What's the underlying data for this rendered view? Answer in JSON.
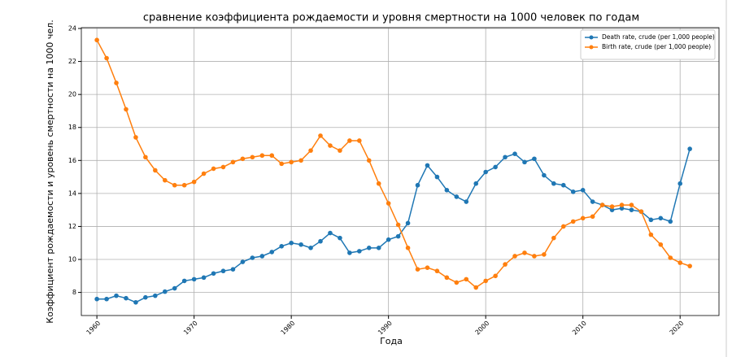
{
  "chart_data": {
    "type": "line",
    "title": "сравнение коэффициента рождаемости и уровня смертности на 1000 человек по годам",
    "xlabel": "Года",
    "ylabel": "Коэффициент рождаемости и уровень смертности на 1000 чел.",
    "x": [
      1960,
      1961,
      1962,
      1963,
      1964,
      1965,
      1966,
      1967,
      1968,
      1969,
      1970,
      1971,
      1972,
      1973,
      1974,
      1975,
      1976,
      1977,
      1978,
      1979,
      1980,
      1981,
      1982,
      1983,
      1984,
      1985,
      1986,
      1987,
      1988,
      1989,
      1990,
      1991,
      1992,
      1993,
      1994,
      1995,
      1996,
      1997,
      1998,
      1999,
      2000,
      2001,
      2002,
      2003,
      2004,
      2005,
      2006,
      2007,
      2008,
      2009,
      2010,
      2011,
      2012,
      2013,
      2014,
      2015,
      2016,
      2017,
      2018,
      2019,
      2020,
      2021
    ],
    "series": [
      {
        "name": "Death rate, crude (per 1,000 people)",
        "color": "#1f77b4",
        "values": [
          7.6,
          7.6,
          7.8,
          7.65,
          7.4,
          7.7,
          7.8,
          8.05,
          8.25,
          8.7,
          8.8,
          8.9,
          9.15,
          9.3,
          9.4,
          9.85,
          10.1,
          10.2,
          10.45,
          10.8,
          11.0,
          10.9,
          10.7,
          11.1,
          11.6,
          11.3,
          10.4,
          10.5,
          10.7,
          10.7,
          11.2,
          11.4,
          12.2,
          14.5,
          15.7,
          15.0,
          14.2,
          13.8,
          13.5,
          14.6,
          15.3,
          15.6,
          16.2,
          16.4,
          15.9,
          16.1,
          15.1,
          14.6,
          14.5,
          14.1,
          14.2,
          13.5,
          13.3,
          13.0,
          13.1,
          13.0,
          12.9,
          12.4,
          12.5,
          12.3,
          14.6,
          16.7
        ]
      },
      {
        "name": "Birth rate, crude (per 1,000 people)",
        "color": "#ff7f0e",
        "values": [
          23.3,
          22.2,
          20.7,
          19.1,
          17.4,
          16.2,
          15.4,
          14.8,
          14.5,
          14.5,
          14.7,
          15.2,
          15.5,
          15.6,
          15.9,
          16.1,
          16.2,
          16.3,
          16.3,
          15.8,
          15.9,
          16.0,
          16.6,
          17.5,
          16.9,
          16.6,
          17.2,
          17.2,
          16.0,
          14.6,
          13.4,
          12.1,
          10.7,
          9.4,
          9.5,
          9.3,
          8.9,
          8.6,
          8.8,
          8.3,
          8.7,
          9.0,
          9.7,
          10.2,
          10.4,
          10.2,
          10.3,
          11.3,
          12.0,
          12.3,
          12.5,
          12.6,
          13.3,
          13.2,
          13.3,
          13.3,
          12.9,
          11.5,
          10.9,
          10.1,
          9.8,
          9.6
        ]
      }
    ],
    "xlim": [
      1958.4,
      2024
    ],
    "ylim": [
      6.6,
      24.05
    ],
    "xticks": [
      1960,
      1970,
      1980,
      1990,
      2000,
      2010,
      2020
    ],
    "yticks": [
      8,
      10,
      12,
      14,
      16,
      18,
      20,
      22,
      24
    ],
    "grid": true,
    "legend": "upper right"
  }
}
